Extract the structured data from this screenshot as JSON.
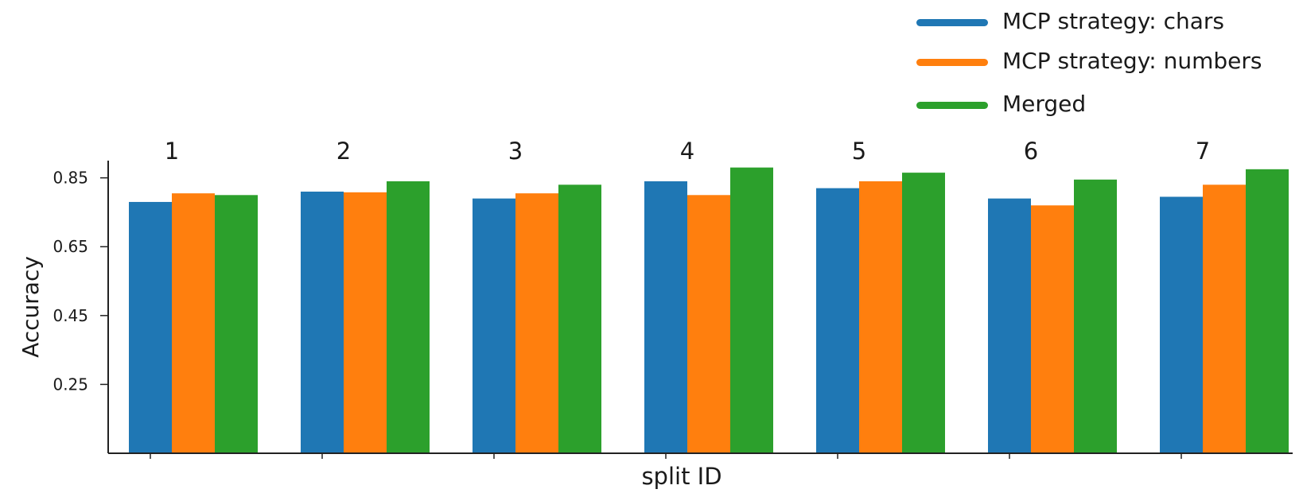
{
  "chart_data": {
    "type": "bar",
    "categories": [
      "1",
      "2",
      "3",
      "4",
      "5",
      "6",
      "7"
    ],
    "series": [
      {
        "name": "MCP strategy: chars",
        "color": "#1f77b4",
        "values": [
          0.78,
          0.81,
          0.79,
          0.84,
          0.82,
          0.79,
          0.795
        ]
      },
      {
        "name": "MCP strategy: numbers",
        "color": "#ff7f0e",
        "values": [
          0.805,
          0.808,
          0.805,
          0.8,
          0.84,
          0.77,
          0.83
        ]
      },
      {
        "name": "Merged",
        "color": "#2ca02c",
        "values": [
          0.8,
          0.84,
          0.83,
          0.88,
          0.865,
          0.845,
          0.875
        ]
      }
    ],
    "xlabel": "split ID",
    "ylabel": "Accuracy",
    "yticks": [
      "0.25",
      "0.45",
      "0.65",
      "0.85"
    ],
    "ylim": [
      0.05,
      0.9
    ],
    "legend_position": "top-right",
    "grid": false
  }
}
